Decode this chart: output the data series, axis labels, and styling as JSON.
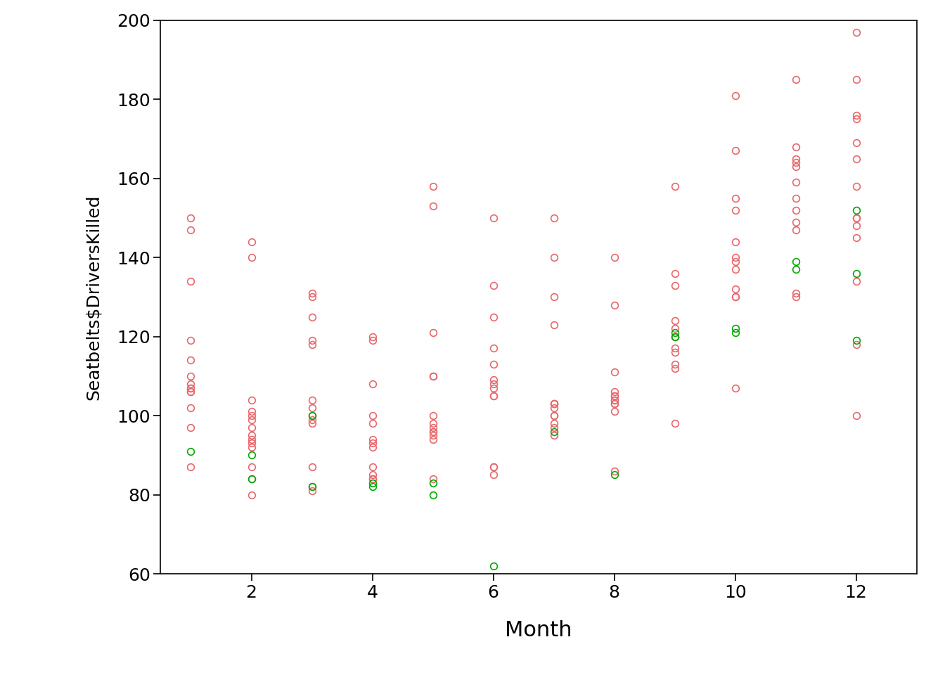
{
  "title": "",
  "xlabel": "Month",
  "ylabel": "Seatbelts$DriversKilled",
  "xlim": [
    0.5,
    13.0
  ],
  "ylim": [
    60,
    200
  ],
  "yticks": [
    60,
    80,
    100,
    120,
    140,
    160,
    180,
    200
  ],
  "xticks": [
    2,
    4,
    6,
    8,
    10,
    12
  ],
  "marker_size": 7,
  "marker_lw": 1.2,
  "color_before": "#E8676B",
  "color_after": "#00AA00",
  "background": "#FFFFFF",
  "data_points": [
    {
      "month": 1,
      "value": 107,
      "after": false
    },
    {
      "month": 1,
      "value": 97,
      "after": false
    },
    {
      "month": 1,
      "value": 102,
      "after": false
    },
    {
      "month": 1,
      "value": 87,
      "after": false
    },
    {
      "month": 1,
      "value": 119,
      "after": false
    },
    {
      "month": 1,
      "value": 106,
      "after": false
    },
    {
      "month": 1,
      "value": 110,
      "after": false
    },
    {
      "month": 1,
      "value": 106,
      "after": false
    },
    {
      "month": 1,
      "value": 107,
      "after": false
    },
    {
      "month": 1,
      "value": 134,
      "after": false
    },
    {
      "month": 1,
      "value": 147,
      "after": false
    },
    {
      "month": 1,
      "value": 150,
      "after": false
    },
    {
      "month": 1,
      "value": 108,
      "after": false
    },
    {
      "month": 1,
      "value": 114,
      "after": false
    },
    {
      "month": 1,
      "value": 91,
      "after": true
    },
    {
      "month": 2,
      "value": 97,
      "after": false
    },
    {
      "month": 2,
      "value": 100,
      "after": false
    },
    {
      "month": 2,
      "value": 87,
      "after": false
    },
    {
      "month": 2,
      "value": 84,
      "after": false
    },
    {
      "month": 2,
      "value": 140,
      "after": false
    },
    {
      "month": 2,
      "value": 99,
      "after": false
    },
    {
      "month": 2,
      "value": 94,
      "after": false
    },
    {
      "month": 2,
      "value": 104,
      "after": false
    },
    {
      "month": 2,
      "value": 92,
      "after": false
    },
    {
      "month": 2,
      "value": 95,
      "after": false
    },
    {
      "month": 2,
      "value": 144,
      "after": false
    },
    {
      "month": 2,
      "value": 93,
      "after": false
    },
    {
      "month": 2,
      "value": 101,
      "after": false
    },
    {
      "month": 2,
      "value": 80,
      "after": false
    },
    {
      "month": 2,
      "value": 90,
      "after": true
    },
    {
      "month": 2,
      "value": 84,
      "after": true
    },
    {
      "month": 3,
      "value": 102,
      "after": false
    },
    {
      "month": 3,
      "value": 87,
      "after": false
    },
    {
      "month": 3,
      "value": 119,
      "after": false
    },
    {
      "month": 3,
      "value": 99,
      "after": false
    },
    {
      "month": 3,
      "value": 125,
      "after": false
    },
    {
      "month": 3,
      "value": 131,
      "after": false
    },
    {
      "month": 3,
      "value": 100,
      "after": false
    },
    {
      "month": 3,
      "value": 81,
      "after": false
    },
    {
      "month": 3,
      "value": 98,
      "after": false
    },
    {
      "month": 3,
      "value": 104,
      "after": false
    },
    {
      "month": 3,
      "value": 118,
      "after": false
    },
    {
      "month": 3,
      "value": 130,
      "after": false
    },
    {
      "month": 3,
      "value": 82,
      "after": false
    },
    {
      "month": 3,
      "value": 82,
      "after": true
    },
    {
      "month": 3,
      "value": 100,
      "after": true
    },
    {
      "month": 4,
      "value": 87,
      "after": false
    },
    {
      "month": 4,
      "value": 119,
      "after": false
    },
    {
      "month": 4,
      "value": 98,
      "after": false
    },
    {
      "month": 4,
      "value": 92,
      "after": false
    },
    {
      "month": 4,
      "value": 94,
      "after": false
    },
    {
      "month": 4,
      "value": 85,
      "after": false
    },
    {
      "month": 4,
      "value": 120,
      "after": false
    },
    {
      "month": 4,
      "value": 100,
      "after": false
    },
    {
      "month": 4,
      "value": 84,
      "after": false
    },
    {
      "month": 4,
      "value": 93,
      "after": false
    },
    {
      "month": 4,
      "value": 84,
      "after": false
    },
    {
      "month": 4,
      "value": 108,
      "after": false
    },
    {
      "month": 4,
      "value": 82,
      "after": true
    },
    {
      "month": 4,
      "value": 83,
      "after": true
    },
    {
      "month": 5,
      "value": 96,
      "after": false
    },
    {
      "month": 5,
      "value": 98,
      "after": false
    },
    {
      "month": 5,
      "value": 94,
      "after": false
    },
    {
      "month": 5,
      "value": 95,
      "after": false
    },
    {
      "month": 5,
      "value": 158,
      "after": false
    },
    {
      "month": 5,
      "value": 96,
      "after": false
    },
    {
      "month": 5,
      "value": 153,
      "after": false
    },
    {
      "month": 5,
      "value": 121,
      "after": false
    },
    {
      "month": 5,
      "value": 97,
      "after": false
    },
    {
      "month": 5,
      "value": 100,
      "after": false
    },
    {
      "month": 5,
      "value": 110,
      "after": false
    },
    {
      "month": 5,
      "value": 110,
      "after": false
    },
    {
      "month": 5,
      "value": 84,
      "after": false
    },
    {
      "month": 5,
      "value": 80,
      "after": true
    },
    {
      "month": 5,
      "value": 83,
      "after": true
    },
    {
      "month": 6,
      "value": 87,
      "after": false
    },
    {
      "month": 6,
      "value": 105,
      "after": false
    },
    {
      "month": 6,
      "value": 113,
      "after": false
    },
    {
      "month": 6,
      "value": 125,
      "after": false
    },
    {
      "month": 6,
      "value": 108,
      "after": false
    },
    {
      "month": 6,
      "value": 117,
      "after": false
    },
    {
      "month": 6,
      "value": 150,
      "after": false
    },
    {
      "month": 6,
      "value": 109,
      "after": false
    },
    {
      "month": 6,
      "value": 133,
      "after": false
    },
    {
      "month": 6,
      "value": 105,
      "after": false
    },
    {
      "month": 6,
      "value": 85,
      "after": false
    },
    {
      "month": 6,
      "value": 107,
      "after": false
    },
    {
      "month": 6,
      "value": 87,
      "after": false
    },
    {
      "month": 6,
      "value": 62,
      "after": true
    },
    {
      "month": 7,
      "value": 102,
      "after": false
    },
    {
      "month": 7,
      "value": 103,
      "after": false
    },
    {
      "month": 7,
      "value": 95,
      "after": false
    },
    {
      "month": 7,
      "value": 97,
      "after": false
    },
    {
      "month": 7,
      "value": 150,
      "after": false
    },
    {
      "month": 7,
      "value": 100,
      "after": false
    },
    {
      "month": 7,
      "value": 130,
      "after": false
    },
    {
      "month": 7,
      "value": 123,
      "after": false
    },
    {
      "month": 7,
      "value": 103,
      "after": false
    },
    {
      "month": 7,
      "value": 140,
      "after": false
    },
    {
      "month": 7,
      "value": 103,
      "after": false
    },
    {
      "month": 7,
      "value": 98,
      "after": false
    },
    {
      "month": 7,
      "value": 100,
      "after": false
    },
    {
      "month": 7,
      "value": 96,
      "after": true
    },
    {
      "month": 8,
      "value": 104,
      "after": false
    },
    {
      "month": 8,
      "value": 111,
      "after": false
    },
    {
      "month": 8,
      "value": 103,
      "after": false
    },
    {
      "month": 8,
      "value": 101,
      "after": false
    },
    {
      "month": 8,
      "value": 105,
      "after": false
    },
    {
      "month": 8,
      "value": 104,
      "after": false
    },
    {
      "month": 8,
      "value": 128,
      "after": false
    },
    {
      "month": 8,
      "value": 103,
      "after": false
    },
    {
      "month": 8,
      "value": 106,
      "after": false
    },
    {
      "month": 8,
      "value": 105,
      "after": false
    },
    {
      "month": 8,
      "value": 140,
      "after": false
    },
    {
      "month": 8,
      "value": 86,
      "after": false
    },
    {
      "month": 8,
      "value": 85,
      "after": true
    },
    {
      "month": 9,
      "value": 113,
      "after": false
    },
    {
      "month": 9,
      "value": 117,
      "after": false
    },
    {
      "month": 9,
      "value": 112,
      "after": false
    },
    {
      "month": 9,
      "value": 116,
      "after": false
    },
    {
      "month": 9,
      "value": 120,
      "after": false
    },
    {
      "month": 9,
      "value": 120,
      "after": false
    },
    {
      "month": 9,
      "value": 122,
      "after": false
    },
    {
      "month": 9,
      "value": 136,
      "after": false
    },
    {
      "month": 9,
      "value": 124,
      "after": false
    },
    {
      "month": 9,
      "value": 158,
      "after": false
    },
    {
      "month": 9,
      "value": 133,
      "after": false
    },
    {
      "month": 9,
      "value": 98,
      "after": false
    },
    {
      "month": 9,
      "value": 121,
      "after": true
    },
    {
      "month": 9,
      "value": 120,
      "after": true
    },
    {
      "month": 10,
      "value": 130,
      "after": false
    },
    {
      "month": 10,
      "value": 137,
      "after": false
    },
    {
      "month": 10,
      "value": 107,
      "after": false
    },
    {
      "month": 10,
      "value": 140,
      "after": false
    },
    {
      "month": 10,
      "value": 139,
      "after": false
    },
    {
      "month": 10,
      "value": 132,
      "after": false
    },
    {
      "month": 10,
      "value": 144,
      "after": false
    },
    {
      "month": 10,
      "value": 155,
      "after": false
    },
    {
      "month": 10,
      "value": 130,
      "after": false
    },
    {
      "month": 10,
      "value": 181,
      "after": false
    },
    {
      "month": 10,
      "value": 152,
      "after": false
    },
    {
      "month": 10,
      "value": 167,
      "after": false
    },
    {
      "month": 10,
      "value": 122,
      "after": true
    },
    {
      "month": 10,
      "value": 121,
      "after": true
    },
    {
      "month": 11,
      "value": 130,
      "after": false
    },
    {
      "month": 11,
      "value": 131,
      "after": false
    },
    {
      "month": 11,
      "value": 152,
      "after": false
    },
    {
      "month": 11,
      "value": 155,
      "after": false
    },
    {
      "month": 11,
      "value": 163,
      "after": false
    },
    {
      "month": 11,
      "value": 164,
      "after": false
    },
    {
      "month": 11,
      "value": 147,
      "after": false
    },
    {
      "month": 11,
      "value": 168,
      "after": false
    },
    {
      "month": 11,
      "value": 149,
      "after": false
    },
    {
      "month": 11,
      "value": 159,
      "after": false
    },
    {
      "month": 11,
      "value": 185,
      "after": false
    },
    {
      "month": 11,
      "value": 165,
      "after": false
    },
    {
      "month": 11,
      "value": 139,
      "after": true
    },
    {
      "month": 11,
      "value": 137,
      "after": true
    },
    {
      "month": 12,
      "value": 118,
      "after": false
    },
    {
      "month": 12,
      "value": 169,
      "after": false
    },
    {
      "month": 12,
      "value": 158,
      "after": false
    },
    {
      "month": 12,
      "value": 150,
      "after": false
    },
    {
      "month": 12,
      "value": 145,
      "after": false
    },
    {
      "month": 12,
      "value": 150,
      "after": false
    },
    {
      "month": 12,
      "value": 175,
      "after": false
    },
    {
      "month": 12,
      "value": 148,
      "after": false
    },
    {
      "month": 12,
      "value": 165,
      "after": false
    },
    {
      "month": 12,
      "value": 176,
      "after": false
    },
    {
      "month": 12,
      "value": 185,
      "after": false
    },
    {
      "month": 12,
      "value": 197,
      "after": false
    },
    {
      "month": 12,
      "value": 134,
      "after": false
    },
    {
      "month": 12,
      "value": 152,
      "after": true
    },
    {
      "month": 12,
      "value": 136,
      "after": true
    },
    {
      "month": 12,
      "value": 119,
      "after": true
    },
    {
      "month": 12,
      "value": 100,
      "after": false
    }
  ]
}
